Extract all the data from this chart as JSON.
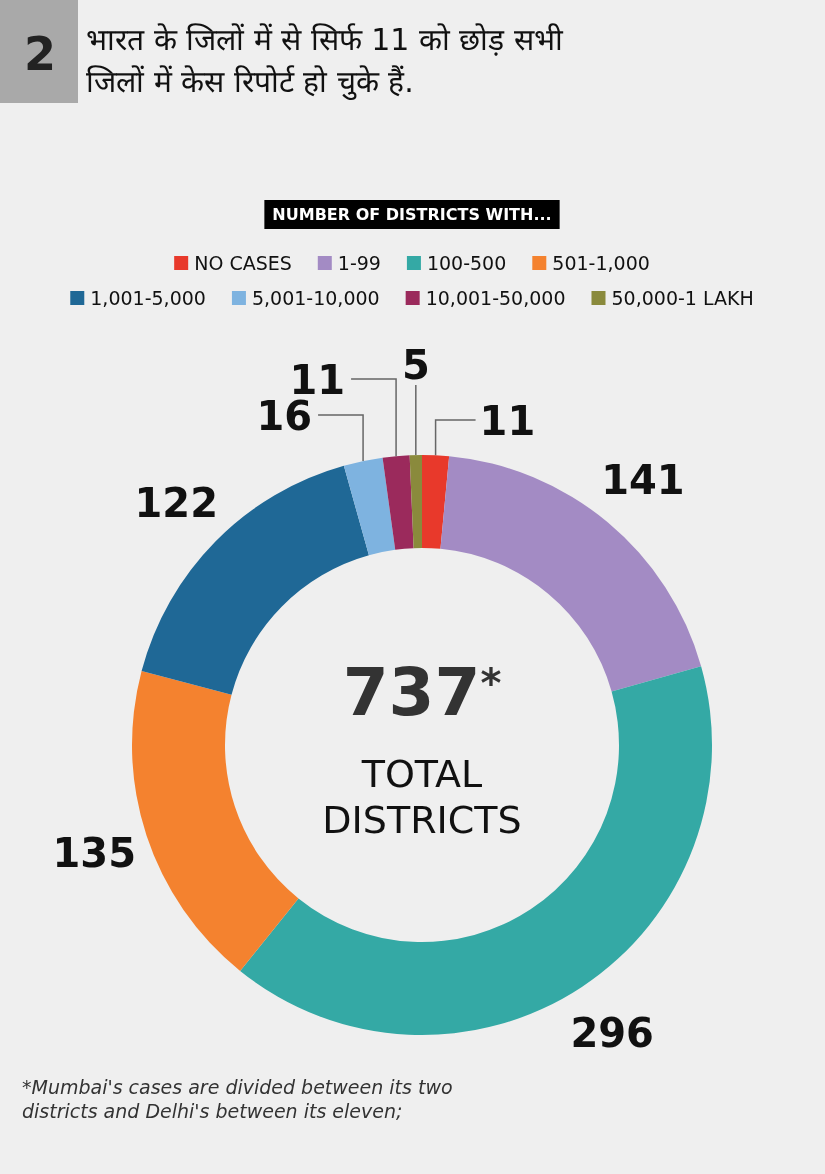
{
  "chart_data": {
    "type": "donut",
    "title": "भारत के जिलों में से सिर्फ 11 को छोड़ सभी जिलों में केस रिपोर्ट हो चुके हैं.",
    "legend_title": "NUMBER OF DISTRICTS WITH...",
    "categories": [
      "NO CASES",
      "1-99",
      "100-500",
      "501-1,000",
      "1,001-5,000",
      "5,001-10,000",
      "10,001-50,000",
      "50,000-1 LAKH"
    ],
    "values": [
      11,
      141,
      296,
      135,
      122,
      16,
      11,
      5
    ],
    "colors": [
      "#e8392b",
      "#a38bc4",
      "#34a9a5",
      "#f4822f",
      "#1f6896",
      "#7eb3e0",
      "#9b2a5c",
      "#8a8a3c"
    ],
    "data_labels": true,
    "legend": "top",
    "annotations": [
      "2",
      "737$^{*}$",
      "TOTAL DISTRICTS",
      "*Mumbai's cases are divided between its two districts and Delhi's between its eleven;"
    ]
  }
}
